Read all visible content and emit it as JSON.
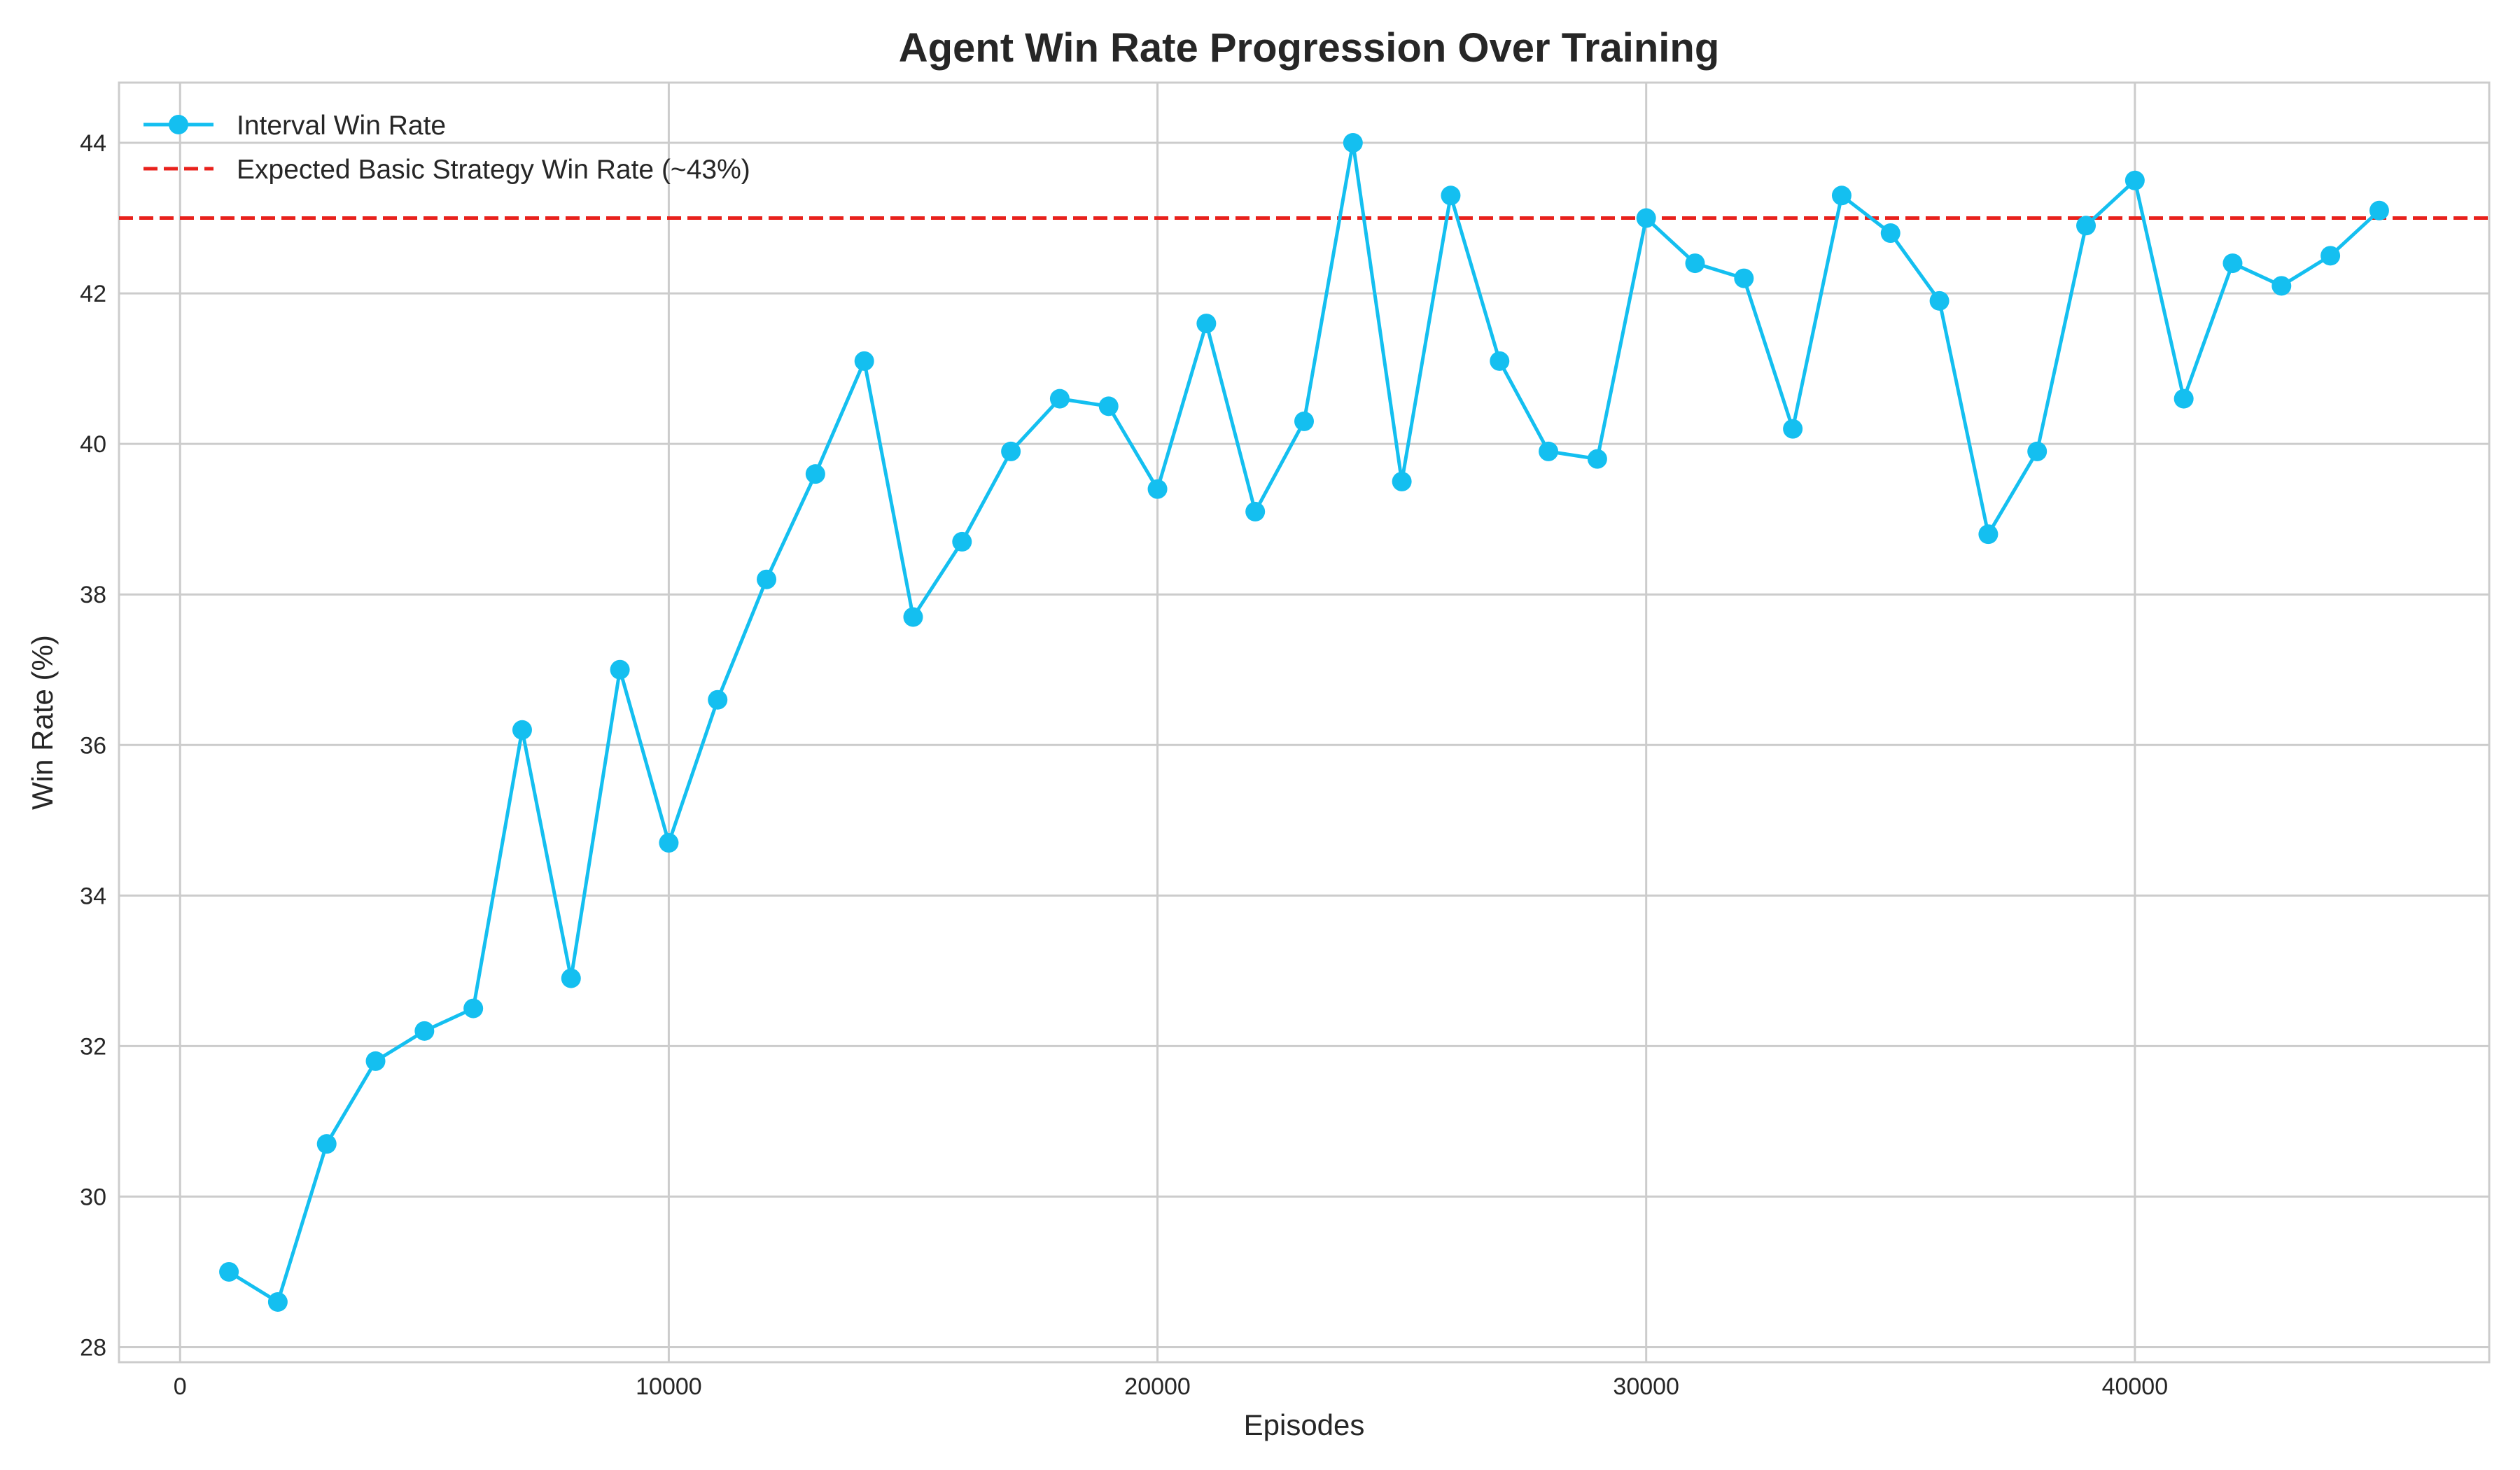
{
  "chart_data": {
    "type": "line",
    "title": "Agent Win Rate Progression Over Training",
    "xlabel": "Episodes",
    "ylabel": "Win Rate (%)",
    "xlim": [
      -1250,
      47250
    ],
    "ylim": [
      27.8,
      44.8
    ],
    "x_ticks": [
      0,
      10000,
      20000,
      30000,
      40000
    ],
    "y_ticks": [
      28,
      30,
      32,
      34,
      36,
      38,
      40,
      42,
      44
    ],
    "x_tick_labels": [
      "0",
      "10000",
      "20000",
      "30000",
      "40000"
    ],
    "y_tick_labels": [
      "28",
      "30",
      "32",
      "34",
      "36",
      "38",
      "40",
      "42",
      "44"
    ],
    "grid": true,
    "legend_position": "top-left",
    "series": [
      {
        "name": "Interval Win Rate",
        "style": "line-with-markers",
        "color": "#14bff0",
        "x": [
          1000,
          2000,
          3000,
          4000,
          5000,
          6000,
          7000,
          8000,
          9000,
          10000,
          11000,
          12000,
          13000,
          14000,
          15000,
          16000,
          17000,
          18000,
          19000,
          20000,
          21000,
          22000,
          23000,
          24000,
          25000,
          26000,
          27000,
          28000,
          29000,
          30000,
          31000,
          32000,
          33000,
          34000,
          35000,
          36000,
          37000,
          38000,
          39000,
          40000,
          41000,
          42000,
          43000,
          44000,
          45000
        ],
        "y": [
          29.0,
          28.6,
          30.7,
          31.8,
          32.2,
          32.5,
          36.2,
          32.9,
          37.0,
          34.7,
          36.6,
          38.2,
          39.6,
          41.1,
          37.7,
          38.7,
          39.9,
          40.6,
          40.5,
          39.4,
          41.6,
          39.1,
          40.3,
          44.0,
          39.5,
          43.3,
          41.1,
          39.9,
          39.8,
          43.0,
          42.4,
          42.2,
          40.2,
          43.3,
          42.8,
          41.9,
          38.8,
          39.9,
          42.9,
          43.5,
          40.6,
          42.4,
          42.1,
          42.5,
          43.1
        ]
      },
      {
        "name": "Expected Basic Strategy Win Rate (~43%)",
        "style": "dashed-horizontal-line",
        "color": "#e8211c",
        "y_value": 43.0
      }
    ]
  }
}
